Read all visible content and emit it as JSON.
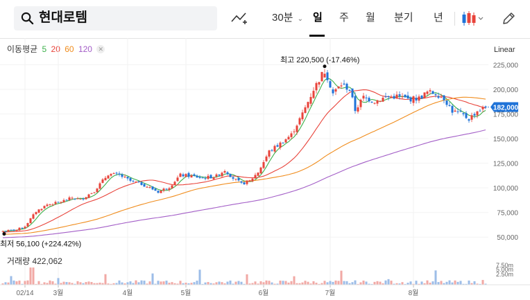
{
  "search": {
    "query": "현대로템"
  },
  "toolbar": {
    "interval": "30분",
    "periods": [
      "일",
      "주",
      "월",
      "분기",
      "년"
    ],
    "active_period": "일"
  },
  "ma_legend": {
    "label": "이동평균",
    "items": [
      {
        "value": "5",
        "color": "#3cb04a"
      },
      {
        "value": "20",
        "color": "#e8433a"
      },
      {
        "value": "60",
        "color": "#f08c1c"
      },
      {
        "value": "120",
        "color": "#a35ec7"
      }
    ]
  },
  "scale_mode": "Linear",
  "volume_label": "거래량 422,062",
  "colors": {
    "up": "#e8433a",
    "down": "#1f73d8",
    "current": "#1f73d8"
  },
  "chart_data": {
    "type": "candlestick",
    "title": "현대로템",
    "y_axis_ticks": [
      225000,
      200000,
      175000,
      150000,
      125000,
      100000,
      75000,
      50000
    ],
    "y_axis_tick_labels": [
      "225,000",
      "200,000",
      "175,000",
      "150,000",
      "125,000",
      "100,000",
      "75,000",
      "50,000"
    ],
    "ylim": [
      34000,
      252000
    ],
    "x_axis_labels": [
      "02/14",
      "3월",
      "4월",
      "5월",
      "6월",
      "7월",
      "8월"
    ],
    "current_price": 182000,
    "current_price_label": "182,000",
    "high_annotation": "최고 220,500 (-17.46%)",
    "low_annotation": "최저 56,100 (+224.42%)",
    "close_anchors": [
      {
        "i": 0,
        "v": 56100
      },
      {
        "i": 5,
        "v": 57500
      },
      {
        "i": 8,
        "v": 61000
      },
      {
        "i": 12,
        "v": 76000
      },
      {
        "i": 16,
        "v": 83000
      },
      {
        "i": 20,
        "v": 85000
      },
      {
        "i": 25,
        "v": 90000
      },
      {
        "i": 28,
        "v": 88000
      },
      {
        "i": 33,
        "v": 97000
      },
      {
        "i": 38,
        "v": 114000
      },
      {
        "i": 42,
        "v": 113000
      },
      {
        "i": 46,
        "v": 107000
      },
      {
        "i": 50,
        "v": 104000
      },
      {
        "i": 53,
        "v": 100000
      },
      {
        "i": 56,
        "v": 96000
      },
      {
        "i": 60,
        "v": 101000
      },
      {
        "i": 64,
        "v": 113000
      },
      {
        "i": 68,
        "v": 112000
      },
      {
        "i": 72,
        "v": 110000
      },
      {
        "i": 77,
        "v": 112000
      },
      {
        "i": 80,
        "v": 118000
      },
      {
        "i": 83,
        "v": 110000
      },
      {
        "i": 86,
        "v": 104000
      },
      {
        "i": 89,
        "v": 107000
      },
      {
        "i": 92,
        "v": 116000
      },
      {
        "i": 96,
        "v": 137000
      },
      {
        "i": 100,
        "v": 145000
      },
      {
        "i": 104,
        "v": 154000
      },
      {
        "i": 108,
        "v": 175000
      },
      {
        "i": 112,
        "v": 200000
      },
      {
        "i": 114,
        "v": 210000
      },
      {
        "i": 116,
        "v": 220500
      },
      {
        "i": 119,
        "v": 196000
      },
      {
        "i": 122,
        "v": 205000
      },
      {
        "i": 125,
        "v": 200000
      },
      {
        "i": 127,
        "v": 179000
      },
      {
        "i": 130,
        "v": 192000
      },
      {
        "i": 134,
        "v": 188000
      },
      {
        "i": 138,
        "v": 192000
      },
      {
        "i": 142,
        "v": 193000
      },
      {
        "i": 146,
        "v": 190000
      },
      {
        "i": 150,
        "v": 191000
      },
      {
        "i": 153,
        "v": 197000
      },
      {
        "i": 156,
        "v": 196000
      },
      {
        "i": 159,
        "v": 191000
      },
      {
        "i": 162,
        "v": 178000
      },
      {
        "i": 165,
        "v": 175000
      },
      {
        "i": 168,
        "v": 170000
      },
      {
        "i": 171,
        "v": 178000
      },
      {
        "i": 174,
        "v": 182000
      }
    ],
    "count": 175,
    "moving_averages": [
      {
        "name": "5",
        "window": 5,
        "color": "#3cb04a"
      },
      {
        "name": "20",
        "window": 20,
        "color": "#e8433a"
      },
      {
        "name": "60",
        "window": 60,
        "color": "#f08c1c"
      },
      {
        "name": "120",
        "window": 120,
        "color": "#a35ec7"
      }
    ],
    "volume": {
      "axis_labels": [
        "7.50m",
        "5.00m",
        "2.50m"
      ],
      "latest": 422062
    }
  }
}
